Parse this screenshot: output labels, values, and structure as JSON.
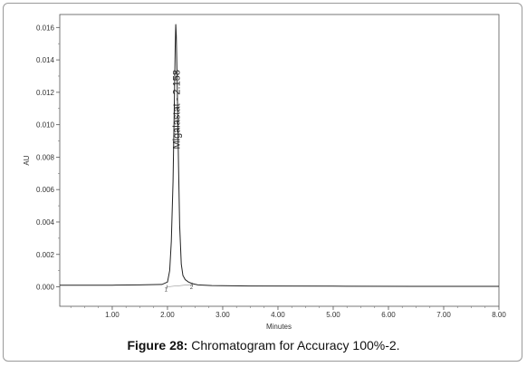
{
  "caption": {
    "label": "Figure 28:",
    "text": " Chromatogram for Accuracy 100%-2."
  },
  "chart_data": {
    "type": "line",
    "xlabel": "Minutes",
    "ylabel": "AU",
    "xlim": [
      0.05,
      8.0
    ],
    "ylim": [
      -0.0012,
      0.0168
    ],
    "x_ticks": [
      "1.00",
      "2.00",
      "3.00",
      "4.00",
      "5.00",
      "6.00",
      "7.00",
      "8.00"
    ],
    "x_tick_values": [
      1,
      2,
      3,
      4,
      5,
      6,
      7,
      8
    ],
    "y_ticks": [
      "0.000",
      "0.002",
      "0.004",
      "0.006",
      "0.008",
      "0.010",
      "0.012",
      "0.014",
      "0.016"
    ],
    "y_tick_values": [
      0,
      0.002,
      0.004,
      0.006,
      0.008,
      0.01,
      0.012,
      0.014,
      0.016
    ],
    "grid": false,
    "series": [
      {
        "x": [
          0.05,
          1.0,
          1.5,
          1.9,
          2.0,
          2.04,
          2.07,
          2.1,
          2.12,
          2.14,
          2.15,
          2.16,
          2.18,
          2.2,
          2.22,
          2.25,
          2.28,
          2.32,
          2.38,
          2.45,
          2.55,
          2.8,
          3.5,
          5.0,
          6.5,
          8.0
        ],
        "y": [
          0.0001,
          0.0001,
          0.00012,
          0.00015,
          0.0003,
          0.001,
          0.0028,
          0.0065,
          0.0105,
          0.0148,
          0.0162,
          0.0155,
          0.0118,
          0.0074,
          0.0038,
          0.0014,
          0.0007,
          0.00045,
          0.0003,
          0.0002,
          0.00012,
          8e-05,
          5e-05,
          4e-05,
          3e-05,
          3e-05
        ]
      }
    ],
    "baseline": {
      "x": [
        1.99,
        2.45
      ],
      "y": [
        0.0,
        0.00015
      ]
    },
    "peak_annotation": {
      "text": "Migalastat - 2.158",
      "x": 2.158,
      "y_from": 0.0085
    },
    "markers": [
      {
        "label": "1",
        "x": 1.99,
        "y": 0.0
      },
      {
        "label": "2",
        "x": 2.45,
        "y": 0.00015
      }
    ]
  }
}
